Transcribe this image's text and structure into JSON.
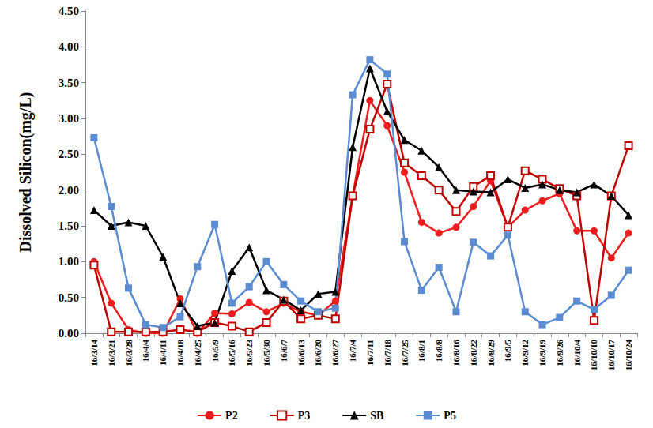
{
  "chart_data": {
    "type": "line",
    "y_label": "Dissolved Silicon(mg/L)",
    "categories": [
      "16/3/14",
      "16/3/21",
      "16/3/28",
      "16/4/4",
      "16/4/11",
      "16/4/18",
      "16/4/25",
      "16/5/9",
      "16/5/16",
      "16/5/23",
      "16/5/30",
      "16/6/7",
      "16/6/13",
      "16/6/20",
      "16/6/27",
      "16/7/4",
      "16/7/11",
      "16/7/18",
      "16/7/25",
      "16/8/1",
      "16/8/8",
      "16/8/16",
      "16/8/22",
      "16/8/29",
      "16/9/5",
      "16/9/12",
      "16/9/19",
      "16/9/26",
      "16/10/4",
      "16/10/10",
      "16/10/17",
      "16/10/24"
    ],
    "series": [
      {
        "name": "P2",
        "color": "#ee1c1c",
        "marker": "circle",
        "values": [
          1.0,
          0.42,
          0.05,
          0.0,
          0.0,
          0.48,
          0.0,
          0.28,
          0.27,
          0.43,
          0.3,
          0.42,
          0.3,
          0.25,
          0.45,
          1.92,
          3.25,
          2.9,
          2.25,
          1.55,
          1.4,
          1.48,
          1.77,
          2.13,
          1.48,
          1.72,
          1.85,
          1.95,
          1.43,
          1.43,
          1.05,
          1.4
        ]
      },
      {
        "name": "P3",
        "color": "#c00000",
        "marker": "square_open",
        "values": [
          0.95,
          0.02,
          0.02,
          0.02,
          0.02,
          0.05,
          0.02,
          0.15,
          0.1,
          0.02,
          0.15,
          0.45,
          0.2,
          0.25,
          0.2,
          1.92,
          2.85,
          3.48,
          2.38,
          2.2,
          2.0,
          1.7,
          2.05,
          2.2,
          1.48,
          2.27,
          2.15,
          2.02,
          1.92,
          0.18,
          1.92,
          2.62
        ]
      },
      {
        "name": "SB",
        "color": "#000000",
        "marker": "triangle",
        "values": [
          1.72,
          1.5,
          1.55,
          1.5,
          1.07,
          0.42,
          0.1,
          0.15,
          0.87,
          1.2,
          0.6,
          0.47,
          0.32,
          0.55,
          0.58,
          2.6,
          3.7,
          3.1,
          2.7,
          2.55,
          2.32,
          2.0,
          1.98,
          1.97,
          2.15,
          2.03,
          2.08,
          2.0,
          1.97,
          2.08,
          1.92,
          1.65
        ]
      },
      {
        "name": "P5",
        "color": "#5b8bd0",
        "marker": "square",
        "values": [
          2.73,
          1.77,
          0.63,
          0.12,
          0.08,
          0.23,
          0.93,
          1.52,
          0.42,
          0.65,
          1.0,
          0.68,
          0.45,
          0.3,
          0.35,
          3.33,
          3.82,
          3.62,
          1.28,
          0.6,
          0.92,
          0.3,
          1.27,
          1.08,
          1.37,
          0.3,
          0.12,
          0.22,
          0.45,
          0.33,
          0.53,
          0.88
        ]
      }
    ],
    "ylim": [
      0,
      4.5
    ],
    "yticks": [
      {
        "value": 0,
        "label": "0.00"
      },
      {
        "value": 0.5,
        "label": "0.50"
      },
      {
        "value": 1,
        "label": "1.00"
      },
      {
        "value": 1.5,
        "label": "1.50"
      },
      {
        "value": 2,
        "label": "2.00"
      },
      {
        "value": 2.5,
        "label": "2.50"
      },
      {
        "value": 3,
        "label": "3.00"
      },
      {
        "value": 3.5,
        "label": "3.50"
      },
      {
        "value": 4,
        "label": "4.00"
      },
      {
        "value": 4.5,
        "label": "4.50"
      }
    ],
    "grid": false,
    "legend": "bottom"
  }
}
